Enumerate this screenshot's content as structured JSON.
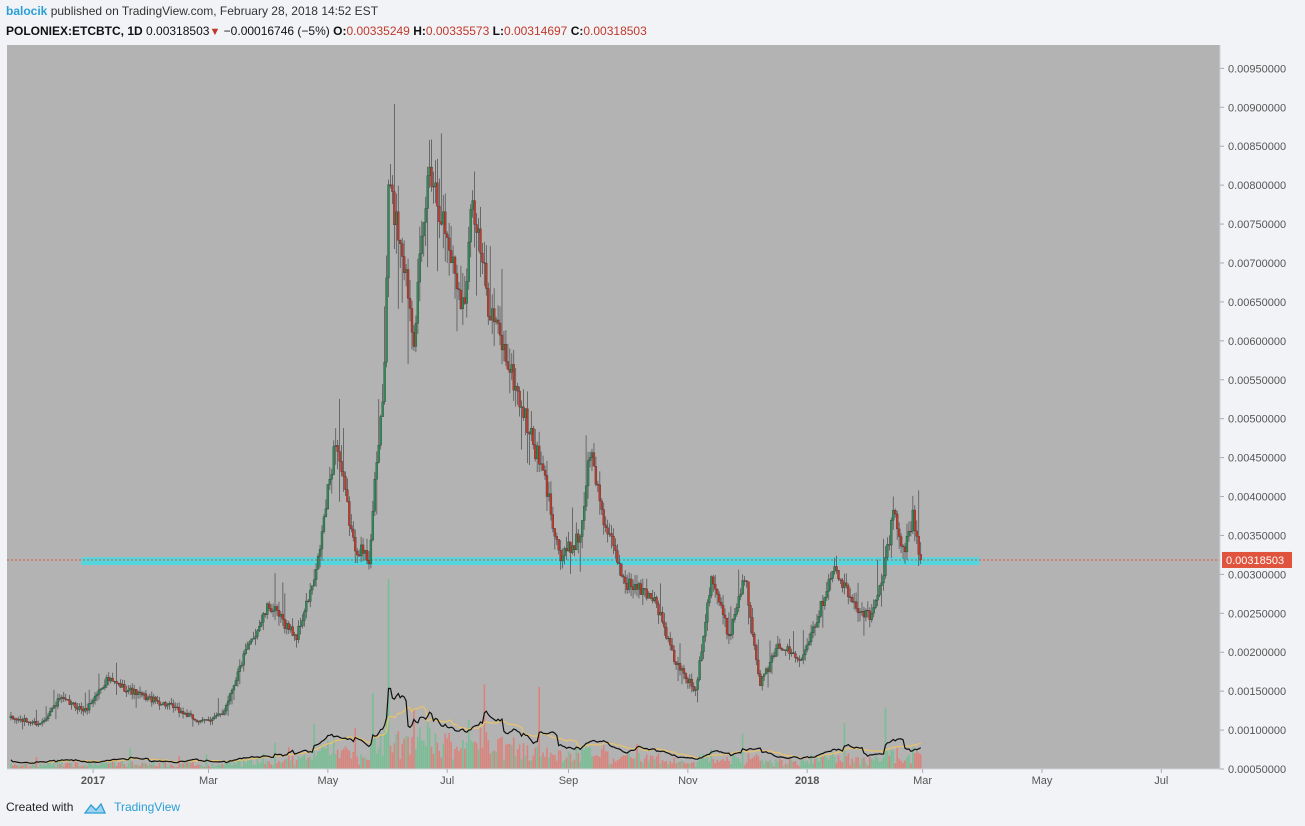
{
  "header": {
    "author": "balocik",
    "published_text": "published on TradingView.com, February 28, 2018 14:52 EST",
    "symbol": "POLONIEX:ETCBTC, 1D",
    "last": "0.00318503",
    "change": "−0.00016746 (−5%)",
    "o_label": "O:",
    "o_value": "0.00335249",
    "h_label": "H:",
    "h_value": "0.00335573",
    "l_label": "L:",
    "l_value": "0.00314697",
    "c_label": "C:",
    "c_value": "0.00318503"
  },
  "footer": {
    "created_with": "Created with",
    "brand": "TradingView"
  },
  "colors": {
    "plot_bg": "#b3b3b3",
    "up": "#2e8b57",
    "down": "#c0392b",
    "support": "#4dd9e0",
    "price_label": "#e0533c"
  },
  "chart_data": {
    "type": "candlestick",
    "title": "",
    "xlabel": "",
    "ylabel": "",
    "ylim": [
      0.0005,
      0.0098
    ],
    "y_ticks": [
      "0.00950000",
      "0.00900000",
      "0.00850000",
      "0.00800000",
      "0.00750000",
      "0.00700000",
      "0.00650000",
      "0.00600000",
      "0.00550000",
      "0.00500000",
      "0.00450000",
      "0.00400000",
      "0.00350000",
      "0.00300000",
      "0.00250000",
      "0.00200000",
      "0.00150000",
      "0.00100000",
      "0.00050000"
    ],
    "x_ticks": [
      {
        "label": "2017",
        "date": "2017-01-01",
        "bold": true
      },
      {
        "label": "Mar",
        "date": "2017-03-01"
      },
      {
        "label": "May",
        "date": "2017-05-01"
      },
      {
        "label": "Jul",
        "date": "2017-07-01"
      },
      {
        "label": "Sep",
        "date": "2017-09-01"
      },
      {
        "label": "Nov",
        "date": "2017-11-01"
      },
      {
        "label": "2018",
        "date": "2018-01-01",
        "bold": true
      },
      {
        "label": "Mar",
        "date": "2018-03-01"
      },
      {
        "label": "May",
        "date": "2018-05-01"
      },
      {
        "label": "Jul",
        "date": "2018-07-01"
      }
    ],
    "current_price": 0.00318503,
    "current_price_label": "0.00318503",
    "support_zone": {
      "from": 0.00312,
      "to": 0.00322,
      "start": "2016-12-26",
      "end": "2018-03-30"
    },
    "price_path": [
      [
        "2016-11-20",
        0.00115
      ],
      [
        "2016-12-05",
        0.00108
      ],
      [
        "2016-12-15",
        0.0014
      ],
      [
        "2016-12-28",
        0.00125
      ],
      [
        "2017-01-08",
        0.00165
      ],
      [
        "2017-01-25",
        0.00145
      ],
      [
        "2017-02-10",
        0.0013
      ],
      [
        "2017-02-25",
        0.0011
      ],
      [
        "2017-03-08",
        0.0012
      ],
      [
        "2017-03-20",
        0.002
      ],
      [
        "2017-04-01",
        0.0026
      ],
      [
        "2017-04-15",
        0.0022
      ],
      [
        "2017-04-25",
        0.003
      ],
      [
        "2017-05-05",
        0.00475
      ],
      [
        "2017-05-14",
        0.0034
      ],
      [
        "2017-05-22",
        0.0032
      ],
      [
        "2017-05-30",
        0.0056
      ],
      [
        "2017-06-01",
        0.008
      ],
      [
        "2017-06-08",
        0.0072
      ],
      [
        "2017-06-14",
        0.0061
      ],
      [
        "2017-06-22",
        0.0083
      ],
      [
        "2017-07-03",
        0.0071
      ],
      [
        "2017-07-10",
        0.0064
      ],
      [
        "2017-07-13",
        0.0079
      ],
      [
        "2017-07-22",
        0.0065
      ],
      [
        "2017-07-31",
        0.0058
      ],
      [
        "2017-08-10",
        0.005
      ],
      [
        "2017-08-20",
        0.0042
      ],
      [
        "2017-08-28",
        0.0032
      ],
      [
        "2017-09-07",
        0.0035
      ],
      [
        "2017-09-12",
        0.0046
      ],
      [
        "2017-09-20",
        0.0036
      ],
      [
        "2017-09-30",
        0.0029
      ],
      [
        "2017-10-15",
        0.0027
      ],
      [
        "2017-10-25",
        0.0019
      ],
      [
        "2017-11-05",
        0.0015
      ],
      [
        "2017-11-13",
        0.003
      ],
      [
        "2017-11-22",
        0.0022
      ],
      [
        "2017-11-30",
        0.003
      ],
      [
        "2017-12-08",
        0.0016
      ],
      [
        "2017-12-18",
        0.0021
      ],
      [
        "2017-12-28",
        0.0019
      ],
      [
        "2018-01-07",
        0.0025
      ],
      [
        "2018-01-14",
        0.0031
      ],
      [
        "2018-01-25",
        0.0026
      ],
      [
        "2018-02-03",
        0.00245
      ],
      [
        "2018-02-09",
        0.003
      ],
      [
        "2018-02-14",
        0.0038
      ],
      [
        "2018-02-20",
        0.0033
      ],
      [
        "2018-02-24",
        0.00375
      ],
      [
        "2018-02-28",
        0.00318503
      ]
    ],
    "volume_note": "volume histogram (red/green bars) with black and yellow moving averages along the bottom"
  }
}
